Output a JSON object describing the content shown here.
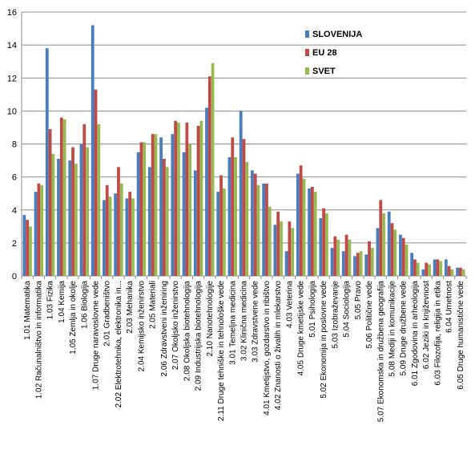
{
  "chart_data": {
    "type": "bar",
    "title": "",
    "xlabel": "",
    "ylabel": "",
    "ylim": [
      0,
      16
    ],
    "yticks": [
      0,
      2,
      4,
      6,
      8,
      10,
      12,
      14,
      16
    ],
    "grid": "horizontal",
    "legend_position": "top-right",
    "categories": [
      "1.01 Matematika",
      "1.02 Računalništvo in informatika",
      "1.03 Fizika",
      "1.04 Kemija",
      "1.05 Zemlja in okolje",
      "1.06 Biologija",
      "1.07 Druge naravoslovne vede",
      "2.01 Gradbeništvo",
      "2.02 Elektrotehnika, elektronika in...",
      "2.03 Mehanika",
      "2.04 Kemijsko inženirstvo",
      "2.05 Materiali",
      "2.06 Zdravstveni inženiring",
      "2.07 Okoljsko inženirstvo",
      "2.08 Okoljska biotehnologija",
      "2.09 Industrijska biotehnologija",
      "2.10 Nanotehnologije",
      "2.11 Druge tehniške in tehnološke vede",
      "3.01 Temeljna medicina",
      "3.02 Klinična medicina",
      "3.03 Zdravstvene vede",
      "4.01 Kmetijstvo, gozdarstvo in ribištvo",
      "4.02 Znanosti o živalih in mlekarstvo",
      "4.03 Veterina",
      "4.05 Druge kmetijske vede",
      "5.01 Psihologija",
      "5.02 Ekonomija in poslovne vede",
      "5.03 Izobraževanje",
      "5.04 Sociologija",
      "5.05 Pravo",
      "5.06 Politične vede",
      "5.07 Ekonomska in družbena geografija",
      "5.08 Mediji in komunikacije",
      "5.09 Druge družbene vede",
      "6.01 Zgodovina in arheologija",
      "6.02 Jeziki in književnost",
      "6.03 Filozofija, religija in etika",
      "6.04 Umetnost",
      "6.05 Druge humanistične vede"
    ],
    "series": [
      {
        "name": "SLOVENIJA",
        "color": "#4a7ebb",
        "values": [
          3.7,
          5.1,
          13.8,
          7.1,
          7.0,
          8.0,
          15.2,
          4.6,
          5.0,
          4.7,
          7.5,
          6.6,
          8.4,
          8.6,
          7.5,
          6.4,
          10.2,
          5.1,
          7.2,
          10.0,
          6.4,
          5.6,
          3.1,
          1.5,
          6.2,
          5.3,
          3.5,
          1.7,
          1.5,
          1.2,
          1.3,
          2.9,
          3.9,
          2.5,
          1.4,
          0.4,
          1.0,
          1.0,
          0.5
        ]
      },
      {
        "name": "EU 28",
        "color": "#be4b48",
        "values": [
          3.4,
          5.6,
          8.9,
          9.6,
          7.8,
          9.2,
          11.3,
          5.5,
          6.6,
          5.1,
          8.1,
          8.6,
          7.1,
          9.4,
          9.3,
          9.1,
          12.1,
          6.1,
          8.4,
          8.3,
          6.2,
          5.6,
          3.9,
          3.3,
          6.7,
          5.4,
          4.1,
          2.4,
          2.5,
          1.4,
          2.1,
          4.6,
          3.2,
          2.3,
          1.0,
          0.8,
          1.0,
          0.6,
          0.5
        ]
      },
      {
        "name": "SVET",
        "color": "#98b954",
        "values": [
          3.0,
          5.5,
          7.4,
          9.5,
          6.8,
          7.8,
          9.2,
          4.8,
          5.6,
          4.7,
          8.1,
          8.6,
          6.6,
          9.3,
          8.0,
          9.4,
          12.9,
          5.3,
          7.2,
          6.9,
          5.5,
          4.2,
          3.3,
          2.9,
          5.9,
          5.1,
          3.8,
          2.2,
          2.2,
          1.5,
          1.7,
          3.8,
          2.8,
          1.9,
          0.8,
          0.7,
          0.9,
          0.4,
          0.4
        ]
      }
    ]
  }
}
